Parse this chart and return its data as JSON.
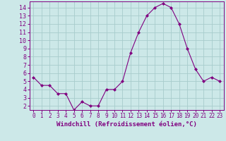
{
  "x": [
    0,
    1,
    2,
    3,
    4,
    5,
    6,
    7,
    8,
    9,
    10,
    11,
    12,
    13,
    14,
    15,
    16,
    17,
    18,
    19,
    20,
    21,
    22,
    23
  ],
  "y": [
    5.5,
    4.5,
    4.5,
    3.5,
    3.5,
    1.5,
    2.5,
    2.0,
    2.0,
    4.0,
    4.0,
    5.0,
    8.5,
    11.0,
    13.0,
    14.0,
    14.5,
    14.0,
    12.0,
    9.0,
    6.5,
    5.0,
    5.5,
    5.0
  ],
  "line_color": "#800080",
  "marker": "D",
  "marker_size": 2,
  "bg_color": "#cce8e8",
  "grid_color": "#a8cccc",
  "xlabel": "Windchill (Refroidissement éolien,°C)",
  "xlim": [
    -0.5,
    23.5
  ],
  "ylim": [
    1.5,
    14.75
  ],
  "xticks": [
    0,
    1,
    2,
    3,
    4,
    5,
    6,
    7,
    8,
    9,
    10,
    11,
    12,
    13,
    14,
    15,
    16,
    17,
    18,
    19,
    20,
    21,
    22,
    23
  ],
  "yticks": [
    2,
    3,
    4,
    5,
    6,
    7,
    8,
    9,
    10,
    11,
    12,
    13,
    14
  ],
  "tick_color": "#800080",
  "xlabel_fontsize": 6.5,
  "ytick_fontsize": 6,
  "xtick_fontsize": 5.5
}
